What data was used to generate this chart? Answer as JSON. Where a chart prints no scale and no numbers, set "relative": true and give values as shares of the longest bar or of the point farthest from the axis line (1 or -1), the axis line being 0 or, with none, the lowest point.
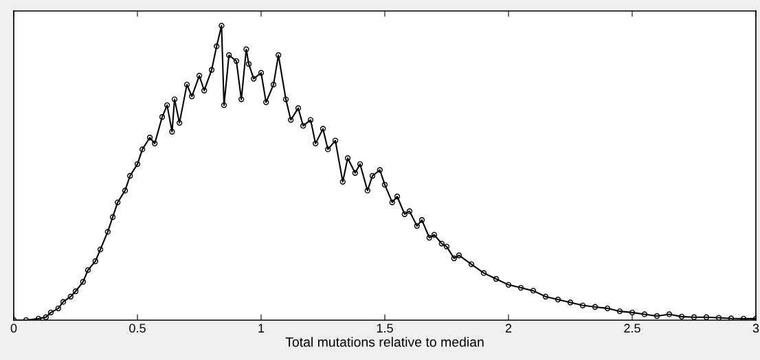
{
  "chart_data": {
    "type": "line",
    "relative": true,
    "xlabel": "Total mutations relative to median",
    "xlim": [
      0,
      3
    ],
    "xticks": [
      0,
      0.5,
      1,
      1.5,
      2,
      2.5,
      3
    ],
    "marker": "circle",
    "line_style": "solid",
    "grid": false,
    "legend": false,
    "series": [
      {
        "color": "#000000",
        "x": [
          0,
          0.05,
          0.1,
          0.13,
          0.15,
          0.18,
          0.2,
          0.23,
          0.25,
          0.28,
          0.3,
          0.33,
          0.35,
          0.38,
          0.4,
          0.42,
          0.45,
          0.47,
          0.5,
          0.52,
          0.55,
          0.57,
          0.6,
          0.62,
          0.64,
          0.65,
          0.67,
          0.7,
          0.72,
          0.75,
          0.77,
          0.8,
          0.82,
          0.84,
          0.85,
          0.87,
          0.9,
          0.92,
          0.94,
          0.95,
          0.97,
          1.0,
          1.02,
          1.05,
          1.07,
          1.1,
          1.12,
          1.15,
          1.17,
          1.2,
          1.22,
          1.25,
          1.27,
          1.3,
          1.33,
          1.35,
          1.38,
          1.4,
          1.43,
          1.45,
          1.48,
          1.5,
          1.53,
          1.55,
          1.58,
          1.6,
          1.63,
          1.65,
          1.68,
          1.7,
          1.73,
          1.75,
          1.78,
          1.8,
          1.85,
          1.9,
          1.95,
          2.0,
          2.05,
          2.1,
          2.15,
          2.2,
          2.25,
          2.3,
          2.35,
          2.4,
          2.45,
          2.5,
          2.55,
          2.6,
          2.65,
          2.7,
          2.75,
          2.8,
          2.85,
          2.9,
          2.95,
          3.0
        ],
        "values": [
          0,
          0,
          0.005,
          0.01,
          0.026,
          0.04,
          0.062,
          0.08,
          0.098,
          0.13,
          0.17,
          0.2,
          0.24,
          0.3,
          0.35,
          0.4,
          0.44,
          0.49,
          0.53,
          0.58,
          0.62,
          0.6,
          0.69,
          0.73,
          0.64,
          0.75,
          0.67,
          0.8,
          0.76,
          0.83,
          0.78,
          0.85,
          0.93,
          1.0,
          0.73,
          0.9,
          0.88,
          0.75,
          0.92,
          0.87,
          0.82,
          0.84,
          0.74,
          0.8,
          0.9,
          0.75,
          0.68,
          0.72,
          0.66,
          0.68,
          0.6,
          0.65,
          0.58,
          0.61,
          0.47,
          0.55,
          0.5,
          0.53,
          0.44,
          0.49,
          0.51,
          0.46,
          0.4,
          0.42,
          0.36,
          0.37,
          0.32,
          0.34,
          0.28,
          0.29,
          0.26,
          0.25,
          0.21,
          0.22,
          0.19,
          0.16,
          0.14,
          0.12,
          0.11,
          0.1,
          0.08,
          0.07,
          0.06,
          0.05,
          0.045,
          0.04,
          0.03,
          0.026,
          0.02,
          0.014,
          0.02,
          0.012,
          0.01,
          0.01,
          0.008,
          0.006,
          0.005,
          0.005
        ]
      }
    ]
  }
}
